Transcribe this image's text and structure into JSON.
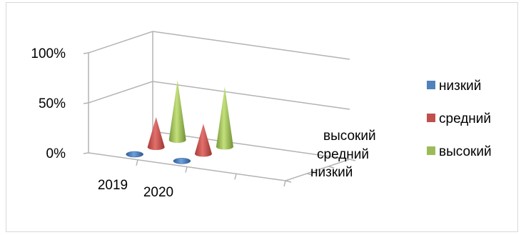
{
  "chart_data": {
    "type": "bar",
    "shape": "cone",
    "categories": [
      "2019",
      "2020"
    ],
    "depth_categories": [
      "низкий",
      "средний",
      "высокий"
    ],
    "y_ticks": [
      "0%",
      "50%",
      "100%"
    ],
    "ylim": [
      0,
      1
    ],
    "grid": true,
    "legend_position": "right",
    "series": [
      {
        "name": "низкий",
        "color": "#4f81bd",
        "values": [
          0.0,
          0.0
        ]
      },
      {
        "name": "средний",
        "color": "#c0504d",
        "values": [
          0.3,
          0.3
        ]
      },
      {
        "name": "высокий",
        "color": "#9bbb59",
        "values": [
          0.6,
          0.6
        ]
      }
    ]
  }
}
